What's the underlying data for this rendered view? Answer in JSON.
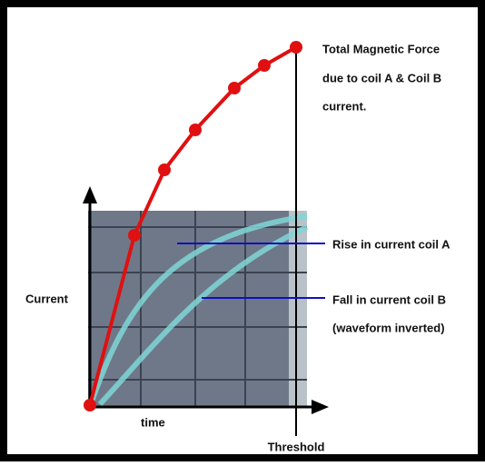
{
  "title": {
    "lines": [
      "Total Magnetic Force",
      "due to coil A & Coil B",
      "current."
    ]
  },
  "axes": {
    "y_label": "Current",
    "x_label": "time"
  },
  "annotations": {
    "rise": "Rise in current coil A",
    "fall": "Fall in current coil B",
    "fall_note": "(waveform inverted)",
    "threshold": "Threshold"
  }
}
